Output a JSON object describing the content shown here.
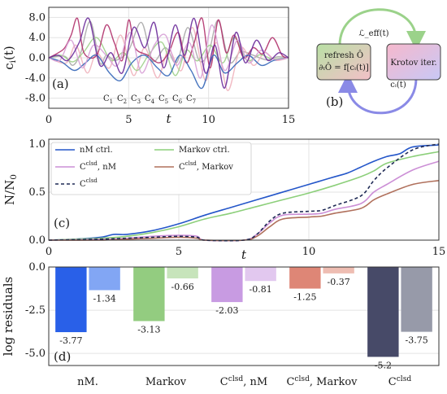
{
  "chart_data": [
    {
      "type": "line",
      "panel_label": "(a)",
      "xlabel": "t",
      "ylabel": "c",
      "ylabel_sub": "i",
      "ylabel_tail": "(t)",
      "xlim": [
        0,
        15
      ],
      "ylim": [
        -10,
        10
      ],
      "xticks": [
        {
          "v": 0,
          "t": "0"
        },
        {
          "v": 5,
          "t": "5"
        },
        {
          "v": 10,
          "t": "10"
        },
        {
          "v": 15,
          "t": "15"
        }
      ],
      "yticks": [
        {
          "v": -8,
          "t": "-8.0"
        },
        {
          "v": -4,
          "t": "-4.0"
        },
        {
          "v": 0,
          "t": "0.0"
        },
        {
          "v": 4,
          "t": "4.0"
        },
        {
          "v": 8,
          "t": "8.0"
        }
      ],
      "grid": true,
      "legend_position": "bottom-center",
      "series": [
        {
          "name": "C",
          "sub": "1",
          "color": "#a8a8a8",
          "x": [
            0,
            1.0,
            1.5,
            2.0,
            2.6,
            3.2,
            3.6,
            4.2,
            5.0,
            5.8,
            6.5,
            7.3,
            8.0,
            8.7,
            9.4,
            10.0,
            10.6,
            11.3,
            12.0,
            12.8,
            13.6,
            14.3,
            15
          ],
          "y": [
            0,
            0.3,
            -1.5,
            1.0,
            7.2,
            -1.0,
            0.5,
            -0.5,
            1.5,
            7.0,
            -0.6,
            2.0,
            -1.0,
            6.0,
            -0.5,
            1.0,
            7.4,
            -0.8,
            1.2,
            0.5,
            -0.4,
            0.2,
            0
          ]
        },
        {
          "name": "C",
          "sub": "2",
          "color": "#f0b2bd",
          "x": [
            0,
            1.1,
            1.7,
            2.4,
            3.0,
            3.8,
            4.5,
            5.3,
            6.0,
            6.8,
            7.5,
            8.3,
            9.0,
            9.8,
            10.5,
            11.2,
            12.0,
            12.8,
            13.5,
            14.2,
            15
          ],
          "y": [
            0,
            -1.0,
            2.5,
            -3.0,
            1.0,
            -2.0,
            4.5,
            -3.5,
            2.0,
            -4.0,
            1.5,
            -2.5,
            6.0,
            -4.5,
            3.0,
            -6.5,
            2.0,
            -1.5,
            1.0,
            -0.5,
            0
          ]
        },
        {
          "name": "C",
          "sub": "3",
          "color": "#9fd08a",
          "x": [
            0,
            0.8,
            1.5,
            2.2,
            3.0,
            3.9,
            4.7,
            5.5,
            6.3,
            7.1,
            7.9,
            8.6,
            9.3,
            10.1,
            10.9,
            11.6,
            12.4,
            13.2,
            14.0,
            15
          ],
          "y": [
            0,
            0.5,
            -0.8,
            1.2,
            4.0,
            -0.5,
            1.0,
            -2.5,
            0.8,
            3.0,
            -3.5,
            1.5,
            -0.6,
            2.5,
            -1.0,
            4.0,
            -0.5,
            0.6,
            -0.2,
            0
          ]
        },
        {
          "name": "C",
          "sub": "4",
          "color": "#b0306a",
          "x": [
            0,
            0.6,
            1.0,
            1.4,
            1.8,
            2.2,
            3.0,
            3.6,
            4.1,
            4.6,
            5.0,
            5.4,
            6.2,
            6.9,
            7.5,
            8.1,
            8.6,
            9.1,
            9.6,
            10.1,
            10.6,
            11.1,
            11.6,
            12.2,
            12.8,
            13.4,
            14.0,
            14.6,
            15
          ],
          "y": [
            0,
            1.0,
            2.0,
            4.5,
            7.8,
            1.0,
            0.5,
            6.5,
            3.0,
            -0.5,
            7.5,
            2.0,
            0.5,
            -1.0,
            1.0,
            5.0,
            -1.0,
            3.0,
            7.8,
            -2.0,
            7.5,
            1.0,
            4.5,
            0.0,
            2.0,
            0.8,
            4.0,
            0.5,
            0
          ]
        },
        {
          "name": "C",
          "sub": "5",
          "color": "#3466b8",
          "x": [
            0,
            0.8,
            1.6,
            2.3,
            3.0,
            3.8,
            4.5,
            5.2,
            6.0,
            6.8,
            7.5,
            8.2,
            8.9,
            9.6,
            10.3,
            11.0,
            11.8,
            12.5,
            13.3,
            14.1,
            15
          ],
          "y": [
            0,
            -0.8,
            -2.5,
            -1.0,
            0.5,
            -3.0,
            -4.5,
            -1.0,
            0.5,
            -2.0,
            -3.5,
            0.5,
            -2.5,
            -6.0,
            0.5,
            -3.0,
            -1.0,
            0.5,
            -1.5,
            -0.5,
            0
          ]
        },
        {
          "name": "C",
          "sub": "6",
          "color": "#d7a0d6",
          "x": [
            0,
            0.7,
            1.4,
            2.1,
            2.8,
            3.6,
            4.3,
            5.1,
            5.8,
            6.6,
            7.3,
            8.0,
            8.8,
            9.5,
            10.2,
            11.0,
            11.8,
            12.5,
            13.3,
            14.1,
            15
          ],
          "y": [
            0,
            -0.5,
            3.5,
            -2.0,
            2.5,
            0.5,
            -1.5,
            5.0,
            -3.0,
            2.5,
            4.5,
            -1.5,
            3.0,
            -4.0,
            6.5,
            -2.5,
            3.5,
            -1.0,
            1.5,
            -0.3,
            0
          ]
        },
        {
          "name": "C",
          "sub": "7",
          "color": "#6a2a9a",
          "x": [
            0,
            0.6,
            1.2,
            1.9,
            2.5,
            3.2,
            3.9,
            4.6,
            5.3,
            6.0,
            6.6,
            7.2,
            7.9,
            8.5,
            9.1,
            9.8,
            10.4,
            11.0,
            11.7,
            12.3,
            13.0,
            13.7,
            14.4,
            15
          ],
          "y": [
            0,
            0.5,
            -0.5,
            3.0,
            7.8,
            -1.5,
            1.0,
            -3.0,
            6.0,
            2.0,
            7.0,
            -2.0,
            6.5,
            0.5,
            7.8,
            -3.0,
            2.5,
            -6.0,
            5.0,
            -1.0,
            3.5,
            -0.5,
            1.0,
            0
          ]
        }
      ]
    },
    {
      "type": "diagram",
      "panel_label": "(b)",
      "left_box": {
        "line1": "refresh Ô",
        "line2": "∂ₜÔ = f[cᵢ(t)]"
      },
      "right_box": {
        "label": "Krotov iter."
      },
      "top_arrow_label": "ℒ_eff(t)",
      "bottom_arrow_label": "cᵢ(t)"
    },
    {
      "type": "line",
      "panel_label": "(c)",
      "xlabel": "t",
      "ylabel": "N/N",
      "ylabel_sub": "0",
      "xlim": [
        0,
        15
      ],
      "ylim": [
        0,
        1.05
      ],
      "xticks": [
        {
          "v": 0,
          "t": "0"
        },
        {
          "v": 5,
          "t": "5"
        },
        {
          "v": 10,
          "t": "10"
        },
        {
          "v": 15,
          "t": "15"
        }
      ],
      "yticks": [
        {
          "v": 0,
          "t": "0.0"
        },
        {
          "v": 0.5,
          "t": "0.5"
        },
        {
          "v": 1.0,
          "t": "1.0"
        }
      ],
      "grid": true,
      "legend_position": "top-left",
      "series": [
        {
          "name": "nM ctrl.",
          "color": "#2456c9",
          "dash": false,
          "x": [
            0,
            1,
            2,
            2.5,
            3,
            4,
            5,
            6,
            7,
            8,
            9,
            10,
            10.5,
            11,
            11.5,
            12,
            12.5,
            13,
            13.5,
            14,
            15
          ],
          "y": [
            0.0,
            0.01,
            0.03,
            0.06,
            0.06,
            0.1,
            0.17,
            0.26,
            0.34,
            0.42,
            0.5,
            0.58,
            0.62,
            0.66,
            0.7,
            0.76,
            0.82,
            0.87,
            0.9,
            0.97,
            0.99
          ]
        },
        {
          "name": "Markov ctrl.",
          "color": "#8ccf7a",
          "dash": false,
          "x": [
            0,
            1,
            2,
            3,
            4,
            5,
            6,
            7,
            8,
            9,
            10,
            11,
            12,
            12.5,
            13,
            14,
            15
          ],
          "y": [
            0.0,
            0.01,
            0.02,
            0.04,
            0.08,
            0.14,
            0.22,
            0.28,
            0.35,
            0.42,
            0.49,
            0.57,
            0.66,
            0.72,
            0.8,
            0.87,
            0.92
          ]
        },
        {
          "name": "nM",
          "prefix": "C",
          "sup": "clsd",
          "color": "#cc8fd6",
          "dash": false,
          "x": [
            0,
            2,
            3,
            4,
            5,
            5.7,
            6,
            7.5,
            8,
            8.5,
            9,
            10,
            10.5,
            11,
            12,
            12.5,
            13,
            14,
            15
          ],
          "y": [
            0.0,
            0.01,
            0.02,
            0.04,
            0.05,
            0.04,
            0.0,
            0.0,
            0.06,
            0.18,
            0.26,
            0.27,
            0.28,
            0.32,
            0.38,
            0.5,
            0.58,
            0.73,
            0.82
          ]
        },
        {
          "name": "Markov",
          "prefix": "C",
          "sup": "clsd",
          "color": "#b0705c",
          "dash": false,
          "x": [
            0,
            2,
            3,
            4,
            5,
            5.7,
            6,
            7.5,
            8,
            8.5,
            9,
            10,
            10.5,
            11,
            12,
            12.5,
            13,
            14,
            15
          ],
          "y": [
            0.0,
            0.0,
            0.01,
            0.02,
            0.03,
            0.02,
            0.0,
            0.0,
            0.04,
            0.14,
            0.22,
            0.24,
            0.25,
            0.28,
            0.33,
            0.42,
            0.48,
            0.58,
            0.62
          ]
        },
        {
          "name": "",
          "prefix": "C",
          "sup": "clsd",
          "color": "#1f2a55",
          "dash": true,
          "x": [
            0,
            2,
            3,
            4,
            5,
            5.7,
            6,
            7.5,
            8,
            8.5,
            9,
            10,
            10.5,
            11,
            12,
            12.5,
            13,
            14,
            15
          ],
          "y": [
            0.0,
            0.01,
            0.02,
            0.03,
            0.04,
            0.03,
            0.0,
            0.0,
            0.06,
            0.2,
            0.28,
            0.3,
            0.31,
            0.36,
            0.46,
            0.62,
            0.75,
            0.94,
            1.0
          ]
        }
      ]
    },
    {
      "type": "bar",
      "panel_label": "(d)",
      "ylabel": "log residuals",
      "ylim": [
        -5.7,
        0
      ],
      "yticks": [
        {
          "v": 0,
          "t": "0.0"
        },
        {
          "v": -2.5,
          "t": "-2.5"
        },
        {
          "v": -5,
          "t": "-5.0"
        }
      ],
      "grid": true,
      "groups": [
        {
          "label": "nM.",
          "sup": "",
          "label_tail": "",
          "bars": [
            {
              "value": -3.77,
              "label": "-3.77",
              "color": "#2960e8"
            },
            {
              "value": -1.34,
              "label": "-1.34",
              "color": "#82a6f4"
            }
          ]
        },
        {
          "label": "Markov",
          "sup": "",
          "label_tail": "",
          "bars": [
            {
              "value": -3.13,
              "label": "-3.13",
              "color": "#93cc80"
            },
            {
              "value": -0.66,
              "label": "-0.66",
              "color": "#c7e4bb"
            }
          ]
        },
        {
          "label": "C",
          "sup": "clsd",
          "label_tail": ", nM",
          "bars": [
            {
              "value": -2.03,
              "label": "-2.03",
              "color": "#c89be2"
            },
            {
              "value": -0.81,
              "label": "-0.81",
              "color": "#e2c8ef"
            }
          ]
        },
        {
          "label": "C",
          "sup": "clsd",
          "label_tail": ", Markov",
          "bars": [
            {
              "value": -1.25,
              "label": "-1.25",
              "color": "#de8676"
            },
            {
              "value": -0.37,
              "label": "-0.37",
              "color": "#eebdb2"
            }
          ]
        },
        {
          "label": "C",
          "sup": "clsd",
          "label_tail": "",
          "bars": [
            {
              "value": -5.2,
              "label": "-5.2",
              "color": "#474a68"
            },
            {
              "value": -3.75,
              "label": "-3.75",
              "color": "#979aa9"
            }
          ]
        }
      ]
    }
  ]
}
